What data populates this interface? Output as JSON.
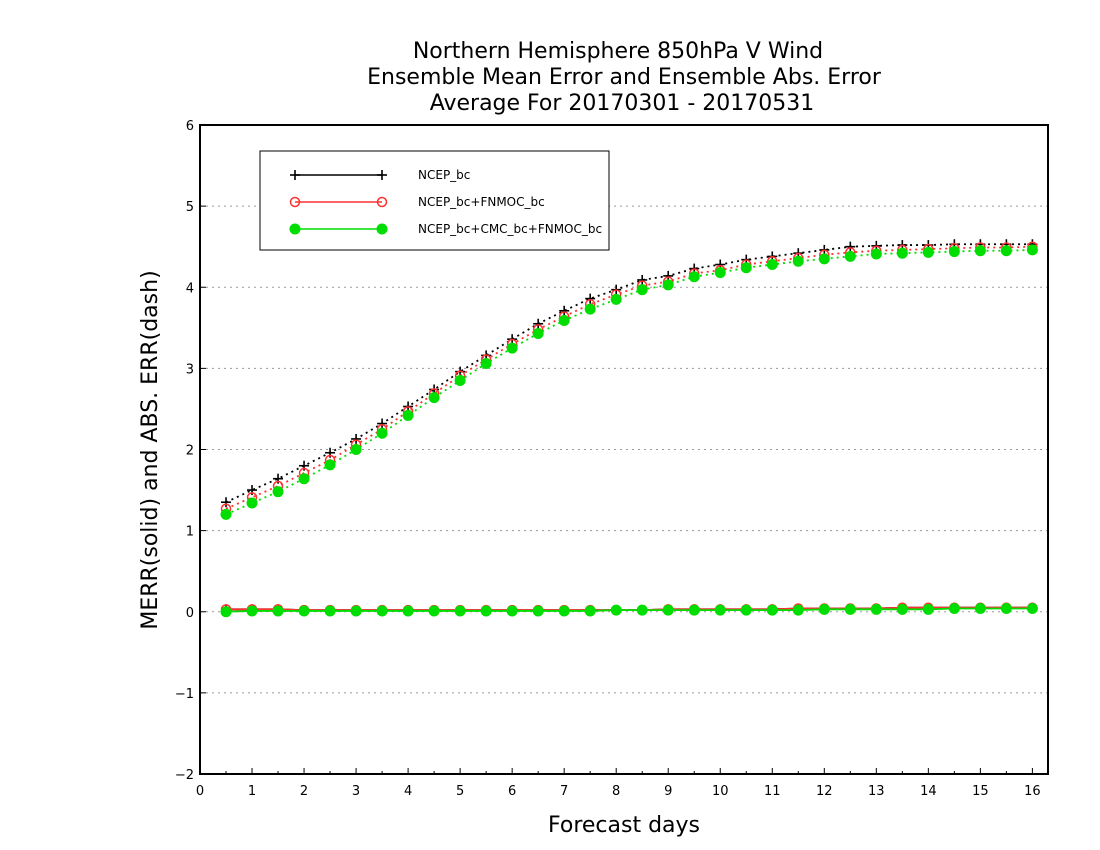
{
  "chart_data": {
    "type": "line",
    "title_lines": [
      "Northern Hemisphere 850hPa V Wind",
      "Ensemble Mean Error and Ensemble Abs. Error",
      "Average For 20170301 - 20170531"
    ],
    "xlabel": "Forecast days",
    "ylabel": "MERR(solid) and ABS. ERR(dash)",
    "xlim": [
      0,
      16.3
    ],
    "ylim": [
      -2,
      6
    ],
    "xticks": [
      0,
      1,
      2,
      3,
      4,
      5,
      6,
      7,
      8,
      9,
      10,
      11,
      12,
      13,
      14,
      15,
      16
    ],
    "yticks": [
      -2,
      -1,
      0,
      1,
      2,
      3,
      4,
      5,
      6
    ],
    "grid": "horizontal dotted",
    "legend_position": "top-left",
    "x": [
      0.5,
      1,
      1.5,
      2,
      2.5,
      3,
      3.5,
      4,
      4.5,
      5,
      5.5,
      6,
      6.5,
      7,
      7.5,
      8,
      8.5,
      9,
      9.5,
      10,
      10.5,
      11,
      11.5,
      12,
      12.5,
      13,
      13.5,
      14,
      14.5,
      15,
      15.5,
      16
    ],
    "series": [
      {
        "name": "NCEP_bc",
        "color": "#000000",
        "marker": "plus",
        "merr": [
          0.03,
          0.03,
          0.03,
          0.02,
          0.02,
          0.02,
          0.02,
          0.02,
          0.02,
          0.02,
          0.02,
          0.02,
          0.02,
          0.02,
          0.02,
          0.02,
          0.02,
          0.03,
          0.03,
          0.03,
          0.03,
          0.03,
          0.04,
          0.04,
          0.04,
          0.04,
          0.05,
          0.05,
          0.05,
          0.05,
          0.05,
          0.05
        ],
        "abs_err": [
          1.35,
          1.5,
          1.64,
          1.8,
          1.96,
          2.13,
          2.32,
          2.53,
          2.74,
          2.96,
          3.16,
          3.36,
          3.55,
          3.71,
          3.86,
          3.97,
          4.09,
          4.14,
          4.23,
          4.28,
          4.34,
          4.38,
          4.42,
          4.46,
          4.5,
          4.51,
          4.52,
          4.52,
          4.53,
          4.53,
          4.53,
          4.53
        ]
      },
      {
        "name": "NCEP_bc+FNMOC_bc",
        "color": "#ff3030",
        "marker": "open-circle",
        "merr": [
          0.03,
          0.03,
          0.03,
          0.02,
          0.02,
          0.02,
          0.02,
          0.02,
          0.02,
          0.02,
          0.02,
          0.02,
          0.02,
          0.02,
          0.02,
          0.02,
          0.02,
          0.03,
          0.03,
          0.03,
          0.03,
          0.03,
          0.04,
          0.04,
          0.04,
          0.04,
          0.05,
          0.05,
          0.05,
          0.05,
          0.05,
          0.05
        ],
        "abs_err": [
          1.27,
          1.41,
          1.55,
          1.71,
          1.87,
          2.06,
          2.25,
          2.47,
          2.69,
          2.91,
          3.11,
          3.3,
          3.48,
          3.64,
          3.79,
          3.91,
          4.02,
          4.07,
          4.17,
          4.21,
          4.28,
          4.32,
          4.36,
          4.4,
          4.43,
          4.45,
          4.46,
          4.47,
          4.48,
          4.49,
          4.49,
          4.5
        ]
      },
      {
        "name": "NCEP_bc+CMC_bc+FNMOC_bc",
        "color": "#00dd00",
        "marker": "filled-circle",
        "merr": [
          0.0,
          0.01,
          0.01,
          0.01,
          0.01,
          0.01,
          0.01,
          0.01,
          0.01,
          0.01,
          0.01,
          0.01,
          0.01,
          0.01,
          0.01,
          0.02,
          0.02,
          0.02,
          0.02,
          0.02,
          0.02,
          0.02,
          0.02,
          0.03,
          0.03,
          0.03,
          0.03,
          0.03,
          0.04,
          0.04,
          0.04,
          0.04
        ],
        "abs_err": [
          1.2,
          1.34,
          1.48,
          1.64,
          1.81,
          2.0,
          2.2,
          2.42,
          2.64,
          2.85,
          3.06,
          3.25,
          3.43,
          3.59,
          3.73,
          3.85,
          3.97,
          4.03,
          4.13,
          4.18,
          4.24,
          4.28,
          4.32,
          4.35,
          4.38,
          4.41,
          4.42,
          4.43,
          4.44,
          4.45,
          4.45,
          4.46
        ]
      }
    ]
  }
}
